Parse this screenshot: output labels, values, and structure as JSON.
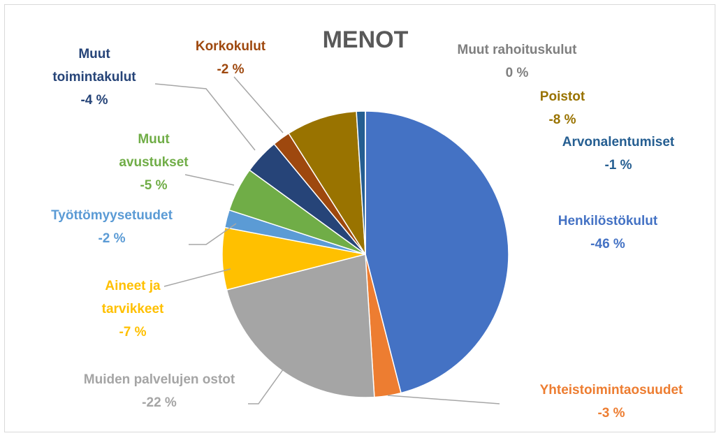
{
  "chart_data": {
    "type": "pie",
    "title": "MENOT",
    "categories": [
      "Henkilöstökulut",
      "Yhteistoimintaosuudet",
      "Muiden palvelujen ostot",
      "Aineet ja tarvikkeet",
      "Työttömyysetuudet",
      "Muut avustukset",
      "Muut toimintakulut",
      "Korkokulut",
      "Poistot",
      "Arvonalentumiset",
      "Muut rahoituskulut"
    ],
    "values": [
      -46,
      -3,
      -22,
      -7,
      -2,
      -5,
      -4,
      -2,
      -8,
      -1,
      0
    ],
    "value_labels": [
      "-46 %",
      "-3 %",
      "-22 %",
      "-7 %",
      "-2 %",
      "-5 %",
      "-4 %",
      "-2 %",
      "-8 %",
      "-1 %",
      "0 %"
    ],
    "colors": [
      "#4472c4",
      "#ed7d31",
      "#a5a5a5",
      "#ffc000",
      "#5b9bd5",
      "#70ad47",
      "#264478",
      "#9e480e",
      "#997300",
      "#255e91",
      "#636363"
    ]
  }
}
